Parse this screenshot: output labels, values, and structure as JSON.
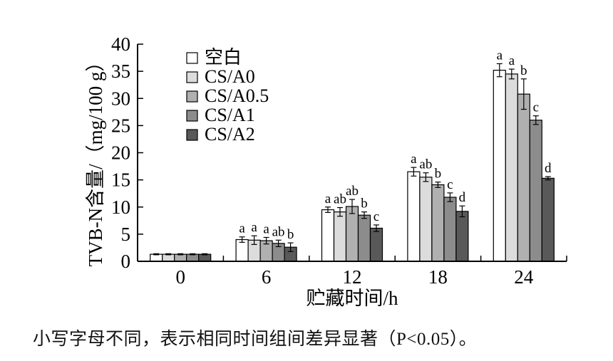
{
  "chart_data": {
    "type": "bar",
    "xlabel": "贮藏时间/h",
    "ylabel": "TVB-N含量/（mg/100 g）",
    "categories": [
      "0",
      "6",
      "12",
      "18",
      "24"
    ],
    "ylim": [
      0,
      40
    ],
    "yticks": [
      0,
      5,
      10,
      15,
      20,
      25,
      30,
      35,
      40
    ],
    "legend_position": "top-left",
    "series": [
      {
        "name": "空白",
        "color": "#ffffff",
        "values": [
          1.3,
          4.0,
          9.5,
          16.5,
          35.2
        ],
        "errors": [
          0.1,
          0.5,
          0.5,
          0.8,
          1.2
        ],
        "letters": [
          "",
          "a",
          "a",
          "a",
          "a"
        ]
      },
      {
        "name": "CS/A0",
        "color": "#dcdcdc",
        "values": [
          1.3,
          3.9,
          9.1,
          15.5,
          34.5
        ],
        "errors": [
          0.1,
          0.8,
          0.8,
          0.8,
          0.9
        ],
        "letters": [
          "",
          "a",
          "ab",
          "ab",
          "a"
        ]
      },
      {
        "name": "CS/A0.5",
        "color": "#b0b0b0",
        "values": [
          1.3,
          3.8,
          10.1,
          14.1,
          30.8
        ],
        "errors": [
          0.1,
          0.6,
          1.3,
          0.5,
          2.8
        ],
        "letters": [
          "",
          "a",
          "ab",
          "b",
          "b"
        ]
      },
      {
        "name": "CS/A1",
        "color": "#8c8c8c",
        "values": [
          1.3,
          3.3,
          8.5,
          11.8,
          26.0
        ],
        "errors": [
          0.1,
          0.6,
          0.6,
          0.8,
          0.8
        ],
        "letters": [
          "",
          "ab",
          "b",
          "c",
          "c"
        ]
      },
      {
        "name": "CS/A2",
        "color": "#595959",
        "values": [
          1.3,
          2.6,
          6.1,
          9.2,
          15.3
        ],
        "errors": [
          0.1,
          0.8,
          0.6,
          1.0,
          0.3
        ],
        "letters": [
          "",
          "b",
          "c",
          "d",
          "d"
        ]
      }
    ]
  },
  "footnote": "小写字母不同，表示相同时间组间差异显著（P<0.05）。"
}
